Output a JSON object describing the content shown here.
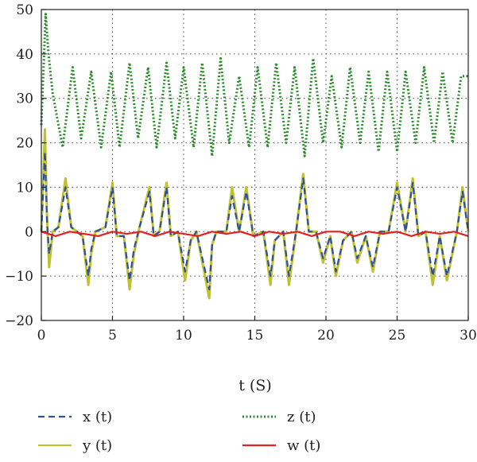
{
  "chart_data": {
    "type": "line",
    "title": "",
    "xlabel": "t (S)",
    "ylabel": "",
    "xlim": [
      0,
      30
    ],
    "ylim": [
      -20,
      50
    ],
    "xticks": [
      "0",
      "5",
      "10",
      "15",
      "20",
      "25",
      "30"
    ],
    "yticks": [
      "−20",
      "−10",
      "0",
      "10",
      "20",
      "30",
      "40",
      "50"
    ],
    "grid": "dotted vertical and horizontal at major ticks",
    "legend_position": "below plot, two columns",
    "series": [
      {
        "name": "x (t)",
        "color": "#2f4f9f",
        "style": "dashed",
        "x": [
          0.0,
          0.25,
          0.4,
          0.55,
          0.8,
          1.2,
          1.7,
          2.1,
          2.5,
          2.9,
          3.3,
          3.5,
          3.8,
          4.5,
          5.0,
          5.3,
          5.8,
          6.2,
          6.5,
          6.9,
          7.6,
          7.9,
          8.3,
          8.8,
          9.1,
          9.6,
          10.1,
          10.5,
          10.9,
          11.8,
          12.0,
          12.3,
          13.0,
          13.4,
          13.9,
          14.4,
          14.9,
          15.6,
          16.1,
          16.4,
          17.0,
          17.4,
          17.9,
          18.4,
          18.8,
          19.3,
          19.8,
          20.3,
          20.7,
          21.2,
          21.8,
          22.2,
          22.8,
          23.3,
          23.8,
          24.4,
          25.0,
          25.6,
          26.1,
          26.5,
          27.0,
          27.5,
          28.0,
          28.5,
          29.2,
          29.6,
          30.0
        ],
        "values": [
          0,
          18,
          2,
          -5,
          0,
          1,
          10,
          1,
          0,
          -1,
          -10,
          -4,
          0,
          1,
          10,
          -1,
          -1,
          -11,
          -4,
          1,
          9,
          -1,
          0,
          10,
          -1,
          0,
          -9,
          -2,
          0,
          -13,
          -3,
          0,
          0,
          8,
          0,
          9,
          -1,
          0,
          -10,
          -2,
          0,
          -10,
          0,
          12,
          0,
          0,
          -6,
          -1,
          -9,
          -2,
          0,
          -6,
          -1,
          -8,
          0,
          0,
          10,
          0,
          11,
          -1,
          0,
          -10,
          -1,
          -10,
          0,
          9,
          0
        ]
      },
      {
        "name": "y (t)",
        "color": "#bfc22e",
        "style": "solid",
        "x": [
          0.0,
          0.25,
          0.4,
          0.55,
          0.8,
          1.2,
          1.7,
          2.1,
          2.5,
          2.9,
          3.3,
          3.5,
          3.8,
          4.5,
          5.0,
          5.3,
          5.8,
          6.2,
          6.5,
          6.9,
          7.6,
          7.9,
          8.3,
          8.8,
          9.1,
          9.6,
          10.1,
          10.5,
          10.9,
          11.8,
          12.0,
          12.3,
          13.0,
          13.4,
          13.9,
          14.4,
          14.9,
          15.6,
          16.1,
          16.4,
          17.0,
          17.4,
          17.9,
          18.4,
          18.8,
          19.3,
          19.8,
          20.3,
          20.7,
          21.2,
          21.8,
          22.2,
          22.8,
          23.3,
          23.8,
          24.4,
          25.0,
          25.6,
          26.1,
          26.5,
          27.0,
          27.5,
          28.0,
          28.5,
          29.2,
          29.6,
          30.0
        ],
        "values": [
          0,
          23,
          3,
          -8,
          0,
          1,
          12,
          1,
          0,
          -1,
          -12,
          -5,
          0,
          1,
          11,
          -1,
          -1,
          -13,
          -5,
          1,
          10,
          -1,
          0,
          11,
          -1,
          0,
          -11,
          -2,
          0,
          -15,
          -3,
          0,
          0,
          10,
          0,
          10,
          -1,
          0,
          -12,
          -2,
          0,
          -12,
          0,
          13,
          0,
          0,
          -7,
          -1,
          -10,
          -2,
          0,
          -7,
          -1,
          -9,
          0,
          0,
          11,
          0,
          12,
          -1,
          0,
          -12,
          -1,
          -11,
          0,
          10,
          0
        ]
      },
      {
        "name": "z (t)",
        "color": "#2a8a2a",
        "style": "dotted",
        "x": [
          0.0,
          0.3,
          0.5,
          0.8,
          1.5,
          2.2,
          2.8,
          3.5,
          4.2,
          4.9,
          5.5,
          6.2,
          6.8,
          7.5,
          8.1,
          8.8,
          9.4,
          10.0,
          10.7,
          11.3,
          12.0,
          12.6,
          13.2,
          13.9,
          14.6,
          15.2,
          15.9,
          16.5,
          17.2,
          17.8,
          18.5,
          19.1,
          19.8,
          20.4,
          21.1,
          21.7,
          22.4,
          23.0,
          23.7,
          24.3,
          25.0,
          25.6,
          26.3,
          26.9,
          27.6,
          28.2,
          28.9,
          29.5,
          30.0
        ],
        "values": [
          24,
          49,
          40,
          31,
          19,
          37,
          21,
          36,
          19,
          36,
          19,
          38,
          21,
          37,
          19,
          38,
          21,
          37,
          19,
          38,
          17,
          39,
          20,
          35,
          19,
          37,
          19,
          38,
          20,
          37,
          17,
          39,
          20,
          35,
          19,
          37,
          20,
          36,
          18,
          36,
          18,
          36,
          20,
          37,
          20,
          36,
          20,
          35,
          35
        ]
      },
      {
        "name": "w (t)",
        "color": "#e52020",
        "style": "solid",
        "x": [
          0.0,
          1.0,
          2.0,
          3.0,
          4.0,
          5.0,
          6.0,
          7.0,
          8.0,
          9.0,
          10.0,
          11.0,
          12.0,
          13.0,
          14.0,
          15.0,
          16.0,
          17.0,
          18.0,
          19.0,
          20.0,
          21.0,
          22.0,
          23.0,
          24.0,
          25.0,
          26.0,
          27.0,
          28.0,
          29.0,
          30.0
        ],
        "values": [
          0,
          -1,
          0,
          -0.5,
          -1,
          0,
          -0.5,
          0,
          -1,
          0,
          -0.5,
          -1,
          0,
          -0.5,
          0,
          -1,
          0,
          -0.5,
          0,
          -1,
          0,
          0,
          -1,
          0,
          -0.5,
          0,
          -1,
          0,
          -0.5,
          0,
          -1
        ]
      }
    ]
  }
}
